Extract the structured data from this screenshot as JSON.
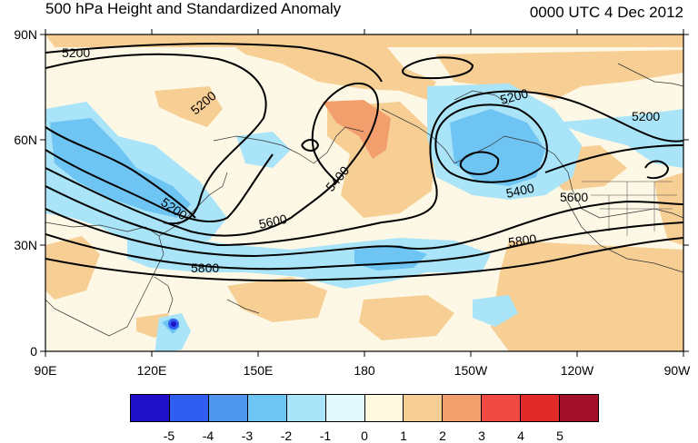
{
  "title": "500 hPa Height and Standardized Anomaly",
  "timestamp": "0000 UTC 4 Dec 2012",
  "lat_labels": [
    "90N",
    "60N",
    "30N",
    "0"
  ],
  "lon_labels": [
    "90E",
    "120E",
    "150E",
    "180",
    "150W",
    "120W",
    "90W"
  ],
  "contour_labels": [
    "5200",
    "5200",
    "5200",
    "5400",
    "5600",
    "5800",
    "5200",
    "5200",
    "5400",
    "5600",
    "5800"
  ],
  "colorbar": {
    "labels": [
      "-5",
      "-4",
      "-3",
      "-2",
      "-1",
      "0",
      "1",
      "2",
      "3",
      "4",
      "5"
    ],
    "colors": [
      "#1f10c8",
      "#2f5ef0",
      "#4f96ee",
      "#6ec4f3",
      "#a9e4f8",
      "#e2f9fd",
      "#fff9e0",
      "#f7cf94",
      "#f39e6d",
      "#f14a42",
      "#e22a2a",
      "#a3102a"
    ]
  },
  "colors": {
    "ocean_neutral": "#fdf8e6",
    "positive_anomaly": "#f7cf94",
    "strong_positive": "#f39e6d",
    "negative_anomaly": "#a9e4f8",
    "strong_negative": "#6ec4f3"
  }
}
